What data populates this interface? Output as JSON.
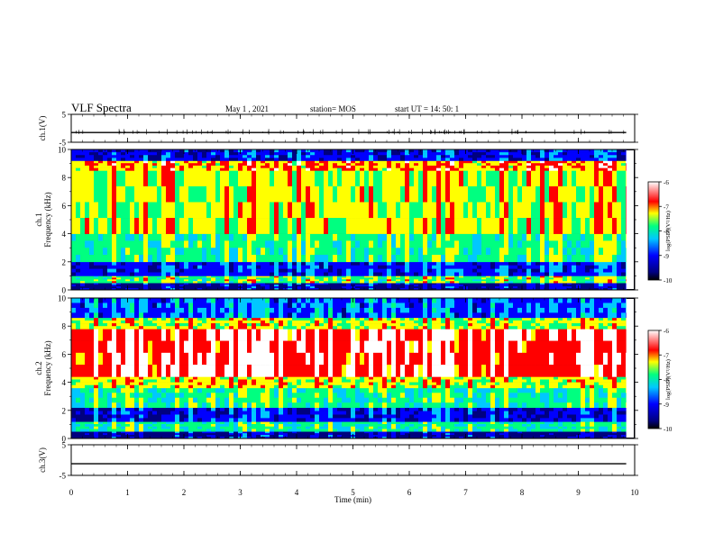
{
  "header": {
    "title": "VLF Spectra",
    "date": "May 1 , 2021",
    "station": "station= MOS",
    "start": "start UT = 14: 50: 1"
  },
  "colors": {
    "colormap": [
      "#000080",
      "#0000ff",
      "#00c8ff",
      "#00ff80",
      "#ffff00",
      "#ff0000",
      "#ffffff"
    ]
  },
  "chart_data": [
    {
      "type": "line",
      "panel": "ch1-waveform",
      "ylabel": "ch.1(V)",
      "ylim": [
        -5,
        5
      ],
      "yticks": [
        "5",
        "-5"
      ],
      "x": [
        0,
        10
      ],
      "y": [
        -1.5,
        -1.5
      ]
    },
    {
      "type": "heatmap",
      "panel": "ch1-spectrogram",
      "ylabel": "ch.1\nFrequency (kHz)",
      "ylim": [
        0,
        10
      ],
      "yticks": [
        "0",
        "2",
        "4",
        "6",
        "8",
        "10"
      ],
      "xlim": [
        0,
        10
      ],
      "colorbar": {
        "label": "log(PSD)(V²/Hz)",
        "range": [
          -10,
          -6
        ],
        "ticks": [
          "-6",
          "-7",
          "-8",
          "-9",
          "-10"
        ]
      },
      "bands_khz": [
        {
          "range": [
            0,
            0.5
          ],
          "level": -10
        },
        {
          "range": [
            0.5,
            1.0
          ],
          "level": -8
        },
        {
          "range": [
            1.0,
            2.0
          ],
          "level": -9.5
        },
        {
          "range": [
            2.0,
            4.0
          ],
          "level": -8.2
        },
        {
          "range": [
            4.0,
            8.5
          ],
          "level": -7.6
        },
        {
          "range": [
            8.5,
            9.2
          ],
          "level": -7.2
        },
        {
          "range": [
            9.2,
            10
          ],
          "level": -9.6
        }
      ]
    },
    {
      "type": "heatmap",
      "panel": "ch2-spectrogram",
      "ylabel": "ch.2\nFrequency (kHz)",
      "ylim": [
        0,
        10
      ],
      "yticks": [
        "0",
        "2",
        "4",
        "6",
        "8",
        "10"
      ],
      "xlim": [
        0,
        10
      ],
      "colorbar": {
        "label": "log(PSD)(V²/Hz)",
        "range": [
          -10,
          -6
        ],
        "ticks": [
          "-6",
          "-7",
          "-8",
          "-9",
          "-10"
        ]
      },
      "bands_khz": [
        {
          "range": [
            0,
            0.5
          ],
          "level": -10
        },
        {
          "range": [
            0.5,
            1.2
          ],
          "level": -8.3
        },
        {
          "range": [
            1.2,
            2.2
          ],
          "level": -9.6
        },
        {
          "range": [
            2.2,
            3.6
          ],
          "level": -8.2
        },
        {
          "range": [
            3.6,
            4.4
          ],
          "level": -7.5
        },
        {
          "range": [
            4.4,
            7.8
          ],
          "level": -6.6
        },
        {
          "range": [
            7.8,
            8.6
          ],
          "level": -7.6
        },
        {
          "range": [
            8.6,
            10
          ],
          "level": -9.2
        }
      ]
    },
    {
      "type": "line",
      "panel": "ch3-waveform",
      "ylabel": "ch.3(V)",
      "ylim": [
        -5,
        5
      ],
      "yticks": [
        "5",
        "-5"
      ],
      "x": [
        0,
        10
      ],
      "y": [
        -1.2,
        -1.2
      ]
    }
  ],
  "xaxis": {
    "label": "Time (min)",
    "ticks": [
      "0",
      "1",
      "2",
      "3",
      "4",
      "5",
      "6",
      "7",
      "8",
      "9",
      "10"
    ],
    "range": [
      0,
      10
    ]
  }
}
